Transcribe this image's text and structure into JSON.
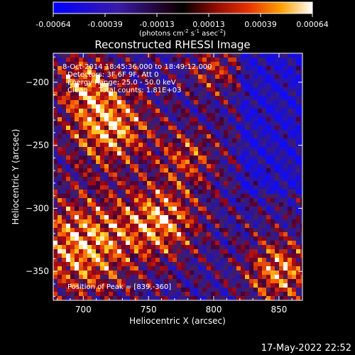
{
  "colorbar": {
    "ticks": [
      "-0.00064",
      "-0.00039",
      "-0.00013",
      "0.00013",
      "0.00039",
      "0.00064"
    ],
    "unit_prefix": "(photons cm",
    "unit_exp1": "-2",
    "unit_mid": " s",
    "unit_exp2": "-1",
    "unit_mid2": " asec",
    "unit_exp3": "-2",
    "unit_suffix": ")"
  },
  "chart_data": {
    "type": "heatmap",
    "title": "Reconstructed RHESSI Image",
    "xlabel": "Heliocentric X (arcsec)",
    "ylabel": "Heliocentric Y (arcsec)",
    "xlim": [
      677,
      868
    ],
    "ylim": [
      -373,
      -177
    ],
    "x_ticks": [
      700,
      750,
      800,
      850
    ],
    "y_ticks": [
      -200,
      -250,
      -300,
      -350
    ],
    "colorscale_range": [
      -0.00064,
      0.00064
    ],
    "grid": false,
    "annotations": [
      "8-Oct-2014 18:45:36.000 to 18:49:12.000",
      "Detectors: 3F 6F 9F, Att 0",
      "Energy Range: 25.0 - 50.0 keV",
      "Clean     Total counts: 1.81E+03"
    ],
    "peak_label": "Position of Peak = [839,-360]"
  },
  "footer": {
    "date": "17-May-2022 22:52"
  }
}
